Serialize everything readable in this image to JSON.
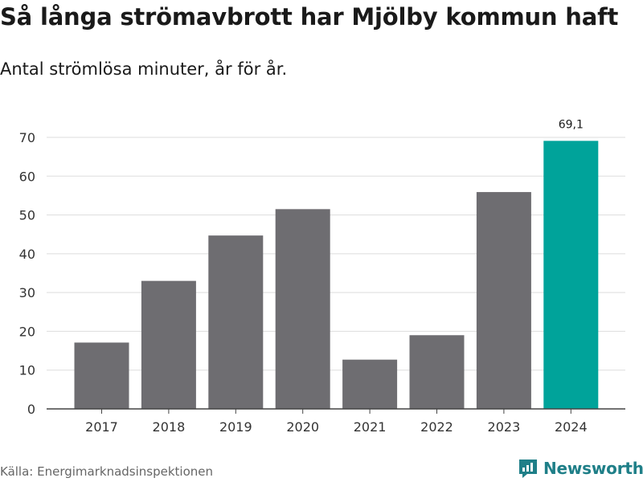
{
  "chart_data": {
    "type": "bar",
    "title": "Så långa strömavbrott har Mjölby kommun haft",
    "subtitle": "Antal strömlösa minuter, år för år.",
    "categories": [
      "2017",
      "2018",
      "2019",
      "2020",
      "2021",
      "2022",
      "2023",
      "2024"
    ],
    "values": [
      17.1,
      33.0,
      44.7,
      51.5,
      12.7,
      19.0,
      55.9,
      69.1
    ],
    "highlight_index": 7,
    "highlight_label": "69,1",
    "yticks": [
      "0",
      "10",
      "20",
      "30",
      "40",
      "50",
      "60",
      "70"
    ],
    "ylim": [
      0,
      70
    ],
    "xlabel": "",
    "ylabel": "",
    "grid": true,
    "colors": {
      "bar": "#6e6d71",
      "highlight": "#00a39a",
      "grid": "#dddddd",
      "axis": "#444444"
    }
  },
  "footer": {
    "source": "Källa: Energimarknadsinspektionen",
    "brand": "Newsworthy",
    "brand_icon": "newsworthy-logo-icon",
    "brand_color": "#1f7f88"
  }
}
